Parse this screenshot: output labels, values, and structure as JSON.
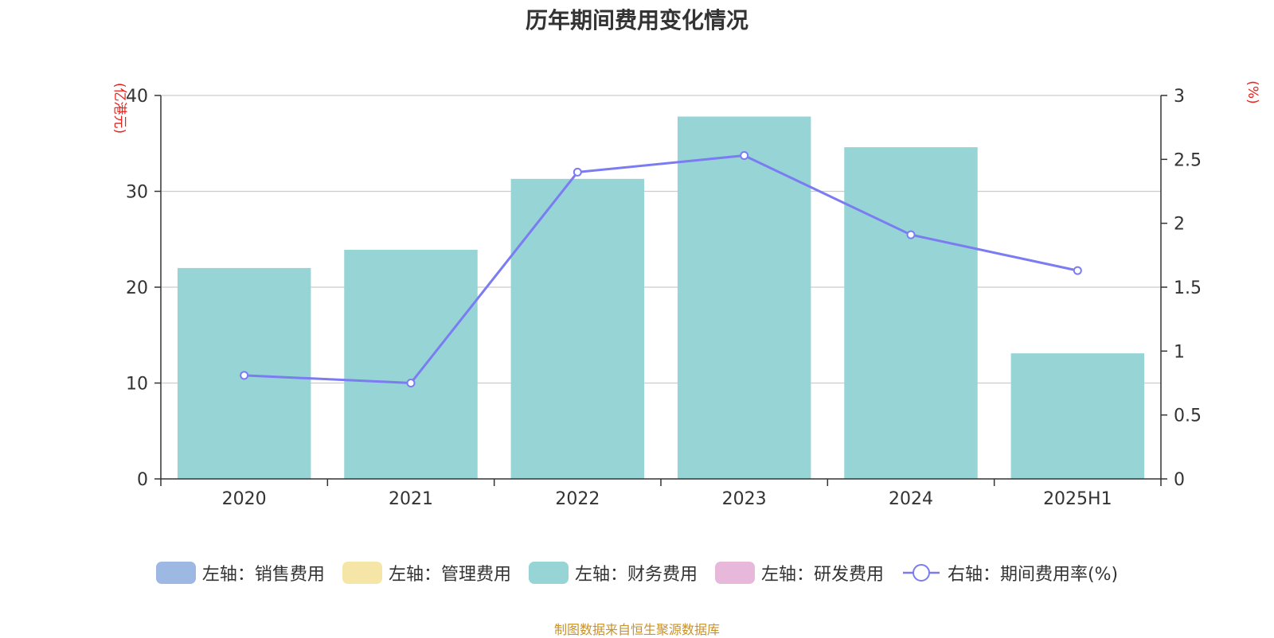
{
  "chart_data": {
    "type": "bar+line",
    "title": "历年期间费用变化情况",
    "categories": [
      "2020",
      "2021",
      "2022",
      "2023",
      "2024",
      "2025H1"
    ],
    "left_axis": {
      "label": "(亿港元)",
      "ticks": [
        "0",
        "10",
        "20",
        "30",
        "40"
      ],
      "range": [
        0,
        40
      ]
    },
    "right_axis": {
      "label": "(%)",
      "ticks": [
        "0",
        "0.5",
        "1",
        "1.5",
        "2",
        "2.5",
        "3"
      ],
      "range": [
        0,
        3
      ]
    },
    "bar_series": [
      {
        "name": "左轴：销售费用",
        "color": "#9db8e2",
        "values": [
          0,
          0,
          0,
          0,
          0,
          0
        ]
      },
      {
        "name": "左轴：管理费用",
        "color": "#f5e6a8",
        "values": [
          0,
          0,
          0,
          0,
          0,
          0
        ]
      },
      {
        "name": "左轴：财务费用",
        "color": "#96d4d5",
        "values": [
          22.0,
          23.9,
          31.3,
          37.8,
          34.6,
          13.1
        ]
      },
      {
        "name": "左轴：研发费用",
        "color": "#e8b8da",
        "values": [
          0,
          0,
          0,
          0,
          0,
          0
        ]
      }
    ],
    "line_series": {
      "name": "右轴：期间费用率(%)",
      "color": "#7b7cf2",
      "values": [
        0.81,
        0.75,
        2.4,
        2.53,
        1.91,
        1.63
      ]
    },
    "label_color": "#e8231e",
    "source_color": "#c8922a",
    "grid": true
  },
  "source_note": "制图数据来自恒生聚源数据库"
}
